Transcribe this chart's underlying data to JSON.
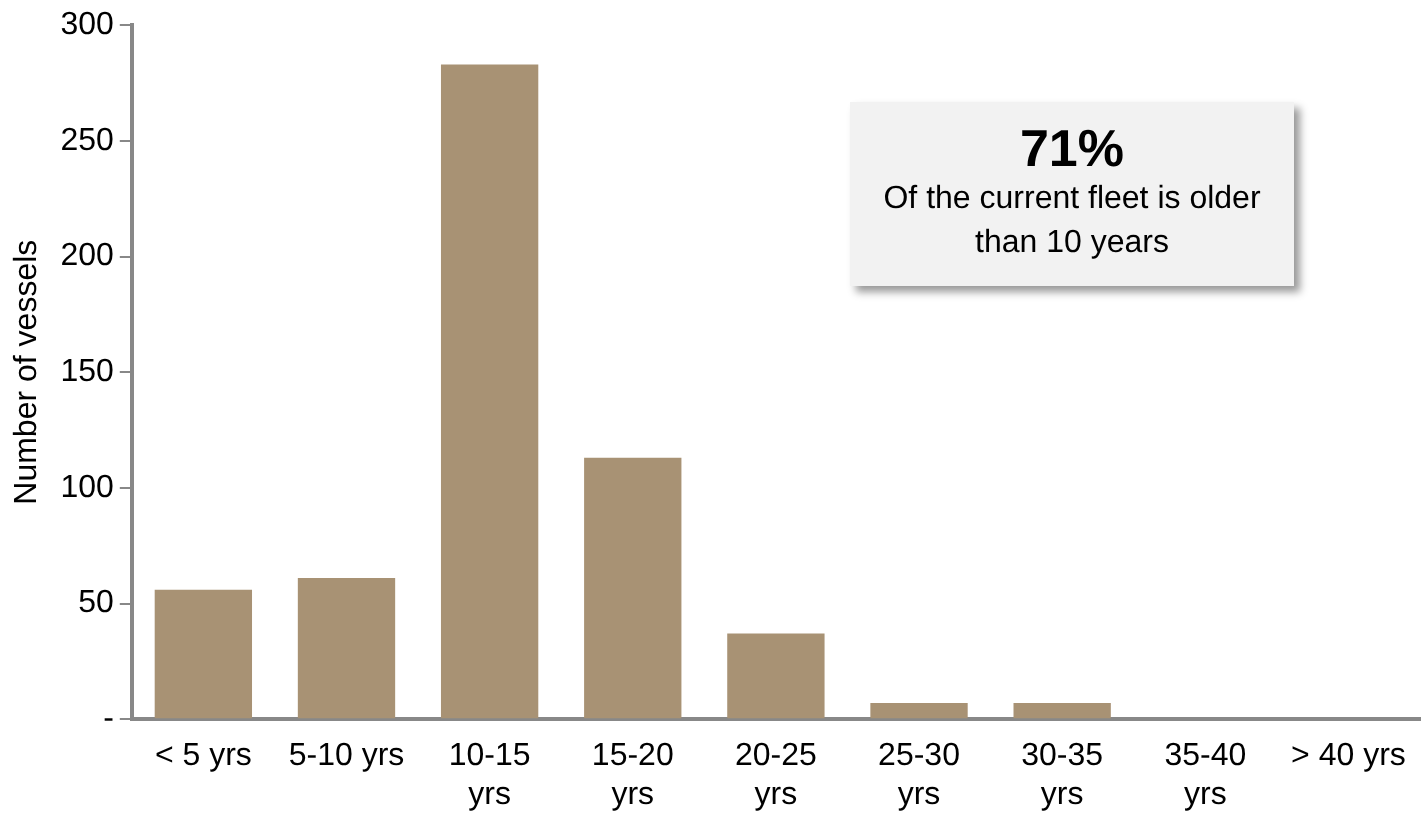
{
  "chart_data": {
    "type": "bar",
    "ylabel": "Number of vessels",
    "categories": [
      "< 5 yrs",
      "5-10 yrs",
      "10-15 yrs",
      "15-20 yrs",
      "20-25 yrs",
      "25-30 yrs",
      "30-35 yrs",
      "35-40 yrs",
      "> 40 yrs"
    ],
    "values": [
      56,
      61,
      283,
      113,
      37,
      7,
      7,
      0,
      0
    ],
    "color": "#a89274",
    "ylim": [
      0,
      300
    ],
    "yticks": [
      {
        "value": 0,
        "label": "-"
      },
      50,
      100,
      150,
      200,
      250,
      300
    ],
    "grid": false,
    "legend": false,
    "annotations": [
      "71%",
      "Of the current fleet is older than 10 years"
    ]
  }
}
